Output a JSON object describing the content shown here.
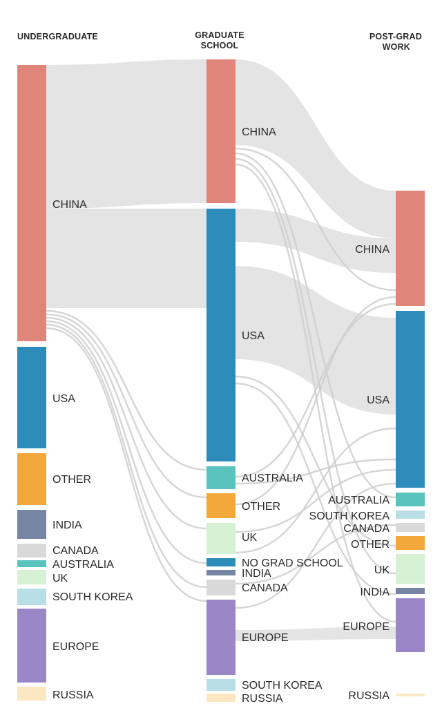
{
  "columns": {
    "undergrad": "UNDERGRADUATE",
    "grad_line1": "GRADUATE",
    "grad_line2": "SCHOOL",
    "post_line1": "POST-GRAD",
    "post_line2": "WORK"
  },
  "colors": {
    "china": "#e0857a",
    "usa": "#2e8cba",
    "other": "#f3a83b",
    "india": "#7685a3",
    "canada": "#d9d9d9",
    "australia": "#5bc3bd",
    "uk": "#d6f1d4",
    "south_korea": "#b9dfe6",
    "europe": "#9b86c8",
    "russia": "#fce7c3",
    "no_grad_school": "#2e8cba",
    "flow": "#d9d9d9"
  },
  "undergrad_nodes": [
    {
      "key": "china",
      "label": "CHINA"
    },
    {
      "key": "usa",
      "label": "USA"
    },
    {
      "key": "other",
      "label": "OTHER"
    },
    {
      "key": "india",
      "label": "INDIA"
    },
    {
      "key": "canada",
      "label": "CANADA"
    },
    {
      "key": "australia",
      "label": "AUSTRALIA"
    },
    {
      "key": "uk",
      "label": "UK"
    },
    {
      "key": "south_korea",
      "label": "SOUTH KOREA"
    },
    {
      "key": "europe",
      "label": "EUROPE"
    },
    {
      "key": "russia",
      "label": "RUSSIA"
    }
  ],
  "grad_nodes": [
    {
      "key": "china",
      "label": "CHINA"
    },
    {
      "key": "usa",
      "label": "USA"
    },
    {
      "key": "australia",
      "label": "AUSTRALIA"
    },
    {
      "key": "other",
      "label": "OTHER"
    },
    {
      "key": "uk",
      "label": "UK"
    },
    {
      "key": "no_grad_school",
      "label": "NO GRAD SCHOOL"
    },
    {
      "key": "india",
      "label": "INDIA"
    },
    {
      "key": "canada",
      "label": "CANADA"
    },
    {
      "key": "europe",
      "label": "EUROPE"
    },
    {
      "key": "south_korea",
      "label": "SOUTH KOREA"
    },
    {
      "key": "russia",
      "label": "RUSSIA"
    }
  ],
  "post_nodes": [
    {
      "key": "china",
      "label": "CHINA"
    },
    {
      "key": "usa",
      "label": "USA"
    },
    {
      "key": "australia",
      "label": "AUSTRALIA"
    },
    {
      "key": "south_korea",
      "label": "SOUTH KOREA"
    },
    {
      "key": "canada",
      "label": "CANADA"
    },
    {
      "key": "other",
      "label": "OTHER"
    },
    {
      "key": "uk",
      "label": "UK"
    },
    {
      "key": "india",
      "label": "INDIA"
    },
    {
      "key": "europe",
      "label": "EUROPE"
    },
    {
      "key": "russia",
      "label": "RUSSIA"
    }
  ]
}
